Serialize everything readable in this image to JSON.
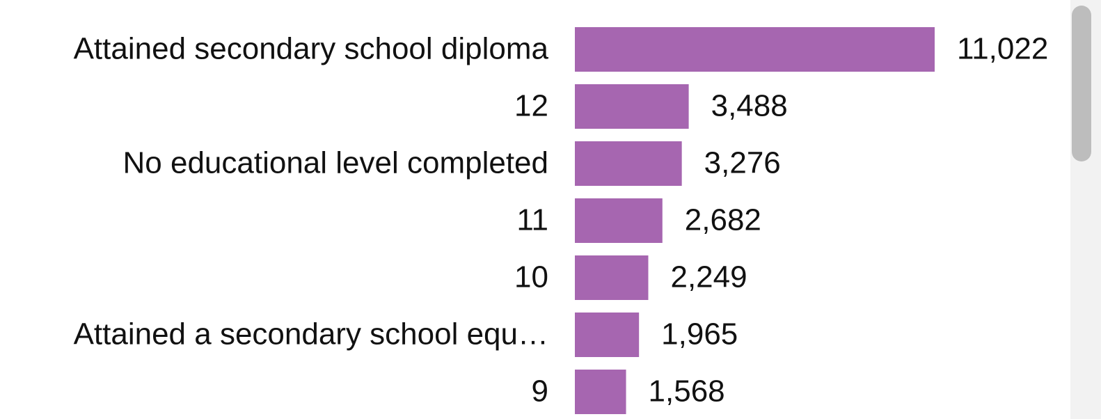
{
  "chart_data": {
    "type": "bar",
    "orientation": "horizontal",
    "categories": [
      "Attained secondary school diploma",
      "12",
      "No educational level completed",
      "11",
      "10",
      "Attained a secondary school equ…",
      "9"
    ],
    "values": [
      11022,
      3488,
      3276,
      2682,
      2249,
      1965,
      1568
    ],
    "value_labels": [
      "11,022",
      "3,488",
      "3,276",
      "2,682",
      "2,249",
      "1,965",
      "1,568"
    ],
    "color": "#a666b0"
  }
}
